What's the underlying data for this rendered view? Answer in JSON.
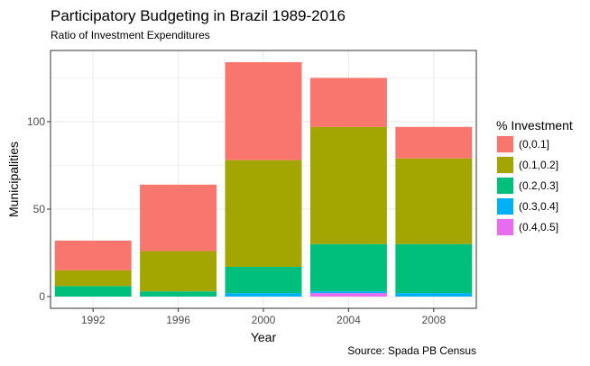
{
  "chart_data": {
    "type": "bar",
    "stacked": true,
    "title": "Participatory Budgeting in Brazil 1989-2016",
    "subtitle": "Ratio of Investment Expenditures",
    "caption": "Source: Spada PB Census",
    "xlabel": "Year",
    "ylabel": "Municipalities",
    "categories": [
      "1992",
      "1996",
      "2000",
      "2004",
      "2008"
    ],
    "y_ticks": [
      0,
      50,
      100
    ],
    "ylim": [
      -6.7,
      140.7
    ],
    "grid": true,
    "legend_position": "right",
    "legend_title": "% Investment",
    "series": [
      {
        "name": "(0,0.1]",
        "color": "#F8766D",
        "values": [
          17,
          38,
          56,
          28,
          18
        ]
      },
      {
        "name": "(0.1,0.2]",
        "color": "#A3A500",
        "values": [
          9,
          23,
          61,
          67,
          49
        ]
      },
      {
        "name": "(0.2,0.3]",
        "color": "#00BF7D",
        "values": [
          6,
          3,
          15,
          27,
          28
        ]
      },
      {
        "name": "(0.3,0.4]",
        "color": "#00B0F6",
        "values": [
          0,
          0,
          2,
          1,
          2
        ]
      },
      {
        "name": "(0.4,0.5]",
        "color": "#E76BF3",
        "values": [
          0,
          0,
          0,
          2,
          0
        ]
      }
    ]
  }
}
